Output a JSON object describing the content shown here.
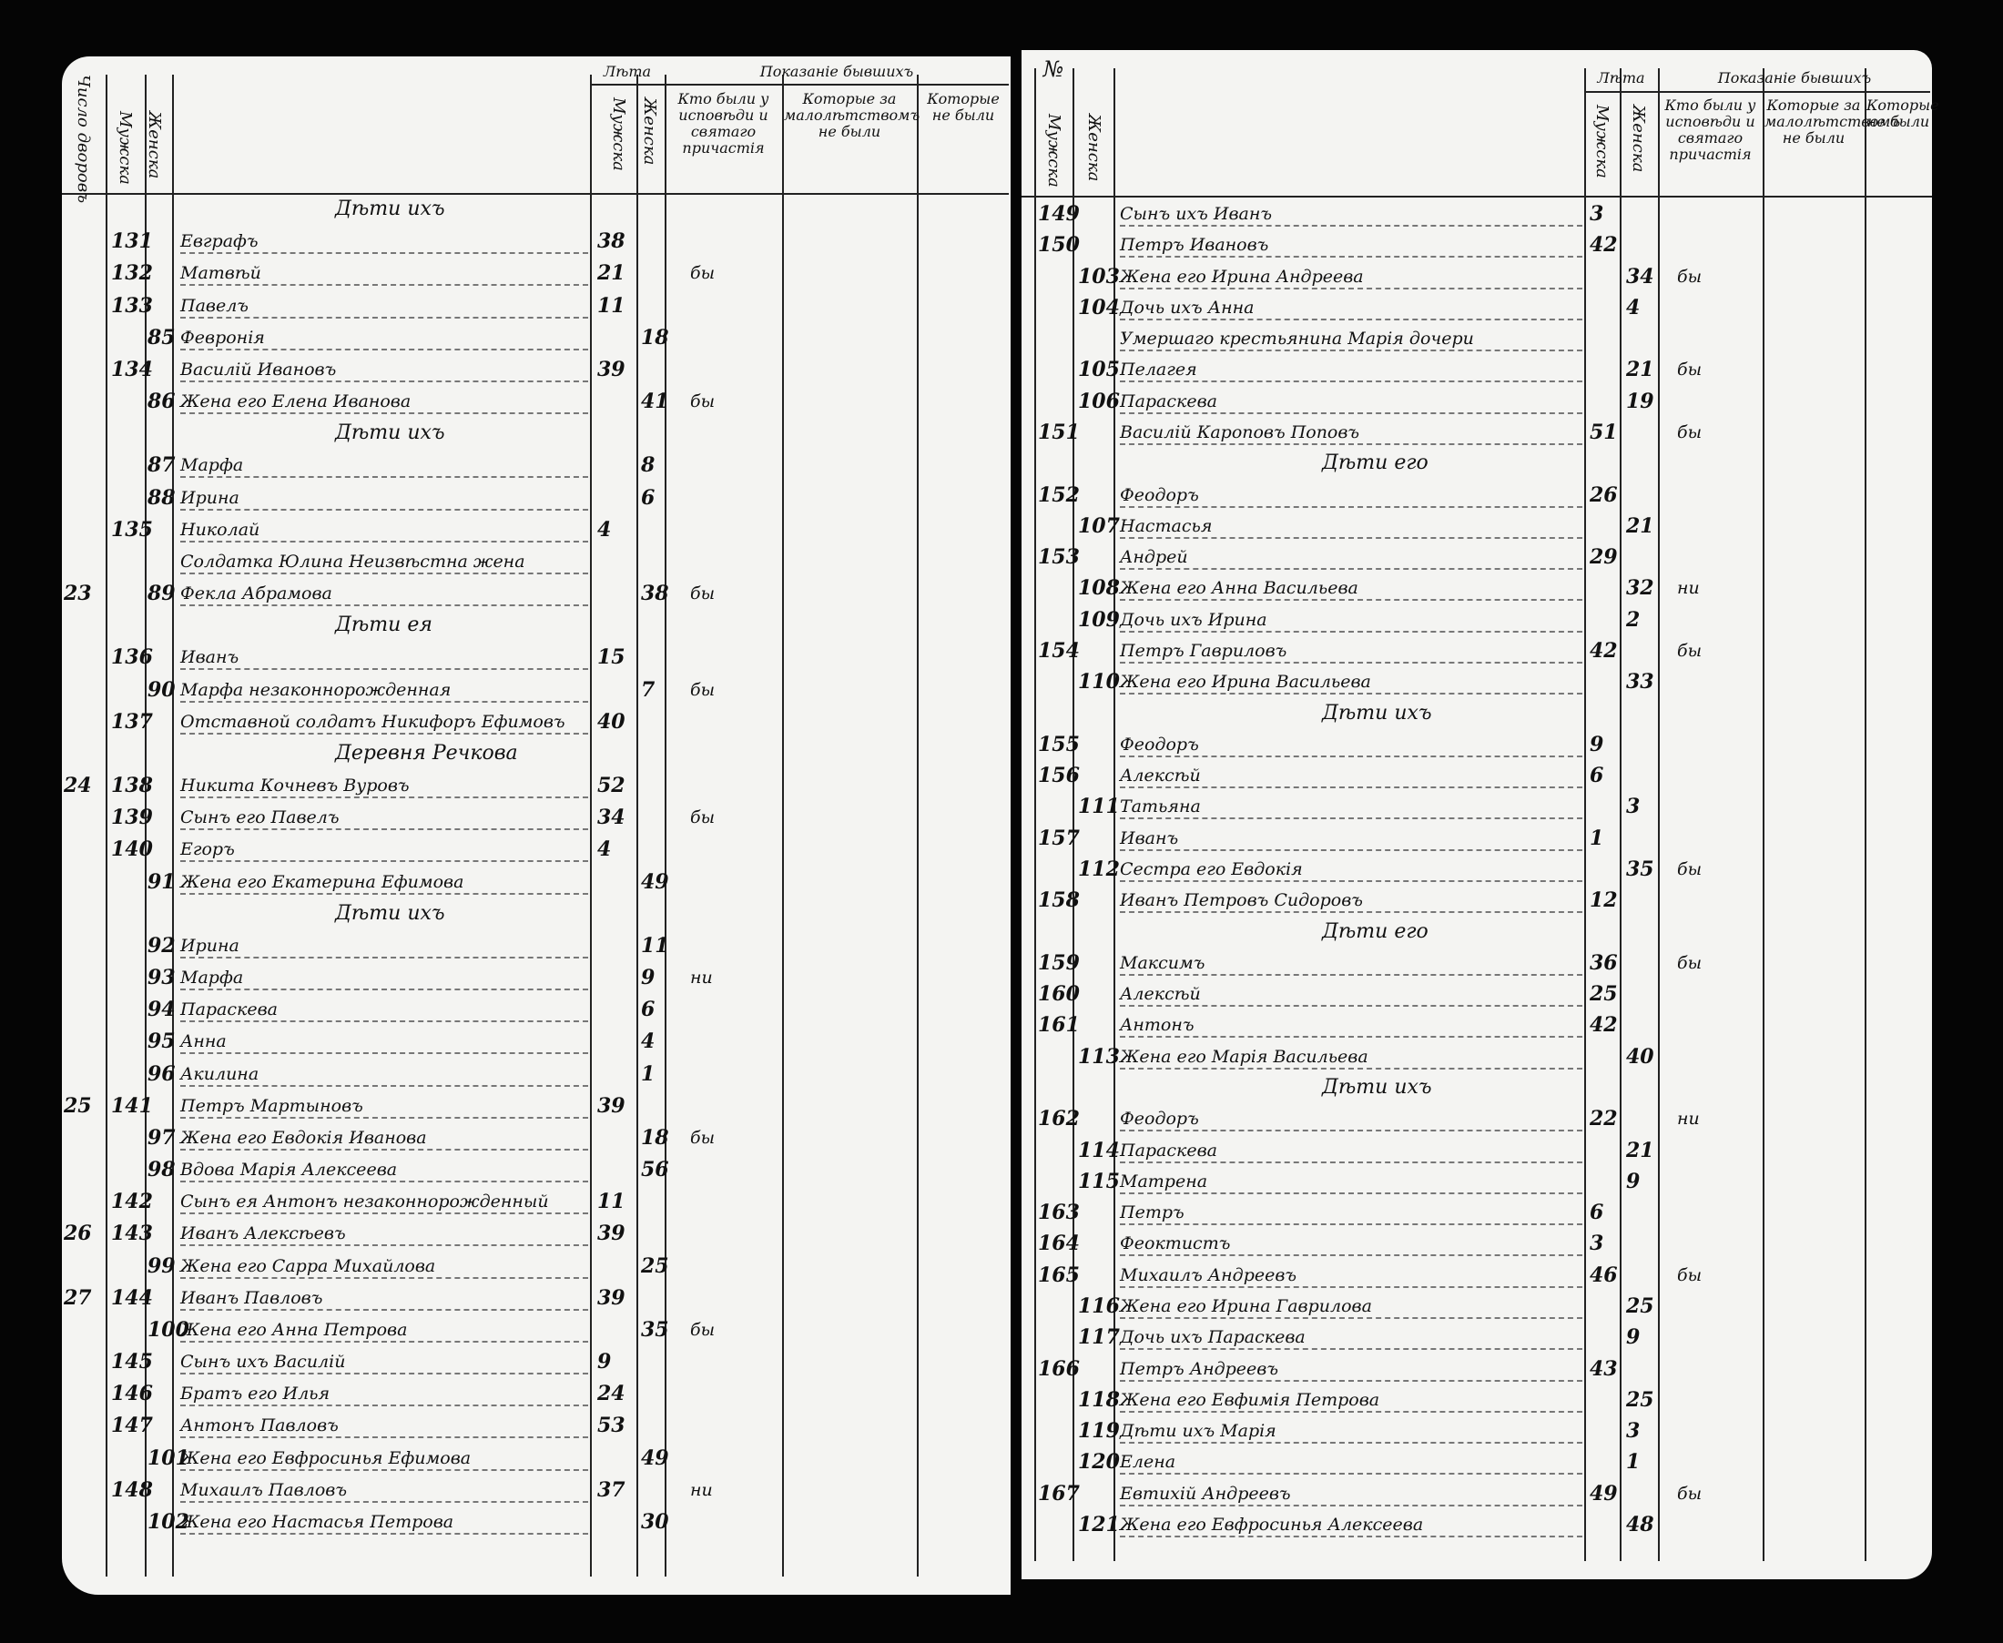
{
  "left_page": {
    "header": {
      "margin_column": "Число дворовъ",
      "male_column": "Мужска",
      "female_column": "Женска",
      "age": "Лѣта",
      "age_male": "Мужска",
      "age_female": "Женска",
      "shown": "Показанiе бывшихъ",
      "were": "Кто были у исповѣди и святаго причастiя",
      "minors": "Которые за малолѣтствомъ не были",
      "absent": "Которые не были"
    },
    "rows": [
      {
        "heading": "Дѣти ихъ"
      },
      {
        "m_no": 131,
        "name": "Евграфъ",
        "m_age": 38
      },
      {
        "m_no": 132,
        "name": "Матвѣй",
        "m_age": 21,
        "mark": "бы"
      },
      {
        "m_no": 133,
        "name": "Павелъ",
        "m_age": 11
      },
      {
        "f_no": 85,
        "name": "Февронiя",
        "f_age": 18
      },
      {
        "m_no": 134,
        "name": "Василiй Ивановъ",
        "m_age": 39
      },
      {
        "f_no": 86,
        "name": "Жена его Елена Иванова",
        "f_age": 41,
        "mark": "бы"
      },
      {
        "heading": "Дѣти ихъ"
      },
      {
        "f_no": 87,
        "name": "Марфа",
        "f_age": 8
      },
      {
        "f_no": 88,
        "name": "Ирина",
        "f_age": 6
      },
      {
        "m_no": 135,
        "name": "Николай",
        "m_age": 4
      },
      {
        "name": "Солдатка Юлина Неизвѣстна жена"
      },
      {
        "margin": 23,
        "f_no": 89,
        "name": "Фекла Абрамова",
        "f_age": 38,
        "mark": "бы"
      },
      {
        "heading": "Дѣти ея"
      },
      {
        "m_no": 136,
        "name": "Иванъ",
        "m_age": 15
      },
      {
        "f_no": 90,
        "name": "Марфа незаконнорожденная",
        "f_age": 7,
        "mark": "бы"
      },
      {
        "m_no": 137,
        "name": "Отставной солдатъ Никифоръ Ефимовъ",
        "m_age": 40
      },
      {
        "heading": "Деревня Речкова"
      },
      {
        "margin": 24,
        "m_no": 138,
        "name": "Никита Кочневъ Вуровъ",
        "m_age": 52
      },
      {
        "m_no": 139,
        "name": "Сынъ его Павелъ",
        "m_age": 34,
        "mark": "бы"
      },
      {
        "m_no": 140,
        "name": "Егоръ",
        "m_age": 4
      },
      {
        "f_no": 91,
        "name": "Жена его Екатерина Ефимова",
        "f_age": 49
      },
      {
        "heading": "Дѣти ихъ"
      },
      {
        "f_no": 92,
        "name": "Ирина",
        "f_age": 11
      },
      {
        "f_no": 93,
        "name": "Марфа",
        "f_age": 9,
        "mark": "ни"
      },
      {
        "f_no": 94,
        "name": "Параскева",
        "f_age": 6
      },
      {
        "f_no": 95,
        "name": "Анна",
        "f_age": 4
      },
      {
        "f_no": 96,
        "name": "Акилина",
        "f_age": 1
      },
      {
        "margin": 25,
        "m_no": 141,
        "name": "Петръ Мартыновъ",
        "m_age": 39
      },
      {
        "f_no": 97,
        "name": "Жена его Евдокiя Иванова",
        "f_age": 18,
        "mark": "бы"
      },
      {
        "f_no": 98,
        "name": "Вдова Марiя Алексеева",
        "f_age": 56
      },
      {
        "m_no": 142,
        "name": "Сынъ ея Антонъ незаконнорожденный",
        "m_age": 11
      },
      {
        "margin": 26,
        "m_no": 143,
        "name": "Иванъ Алексѣевъ",
        "m_age": 39
      },
      {
        "f_no": 99,
        "name": "Жена его Сарра Михайлова",
        "f_age": 25
      },
      {
        "margin": 27,
        "m_no": 144,
        "name": "Иванъ Павловъ",
        "m_age": 39
      },
      {
        "f_no": 100,
        "name": "Жена его Анна Петрова",
        "f_age": 35,
        "mark": "бы"
      },
      {
        "m_no": 145,
        "name": "Сынъ ихъ Василiй",
        "m_age": 9
      },
      {
        "m_no": 146,
        "name": "Братъ его Илья",
        "m_age": 24
      },
      {
        "m_no": 147,
        "name": "Антонъ Павловъ",
        "m_age": 53
      },
      {
        "f_no": 101,
        "name": "Жена его Евфросинья Ефимова",
        "f_age": 49
      },
      {
        "m_no": 148,
        "name": "Михаилъ Павловъ",
        "m_age": 37,
        "mark": "ни"
      },
      {
        "f_no": 102,
        "name": "Жена его Настасья Петрова",
        "f_age": 30
      }
    ]
  },
  "right_page": {
    "header": {
      "number": "№",
      "male_column": "Мужска",
      "female_column": "Женска",
      "age": "Лѣта",
      "age_male": "Мужска",
      "age_female": "Женска",
      "shown": "Показанiе бывшихъ",
      "were": "Кто были у исповѣди и святаго причастiя",
      "minors": "Которые за малолѣтствомъ не были",
      "absent": "Которые не были"
    },
    "rows": [
      {
        "m_no": 149,
        "name": "Сынъ ихъ Иванъ",
        "m_age": 3
      },
      {
        "m_no": 150,
        "name": "Петръ Ивановъ",
        "m_age": 42
      },
      {
        "f_no": 103,
        "name": "Жена его Ирина Андреева",
        "f_age": 34,
        "mark": "бы"
      },
      {
        "f_no": 104,
        "name": "Дочь ихъ Анна",
        "f_age": 4
      },
      {
        "name": "Умершаго крестьянина Марiя дочери"
      },
      {
        "f_no": 105,
        "name": "Пелагея",
        "f_age": 21,
        "mark": "бы"
      },
      {
        "f_no": 106,
        "name": "Параскева",
        "f_age": 19
      },
      {
        "m_no": 151,
        "name": "Василiй Кароповъ Поповъ",
        "m_age": 51,
        "mark": "бы"
      },
      {
        "heading": "Дѣти его"
      },
      {
        "m_no": 152,
        "name": "Феодоръ",
        "m_age": 26
      },
      {
        "f_no": 107,
        "name": "Настасья",
        "f_age": 21
      },
      {
        "m_no": 153,
        "name": "Андрей",
        "m_age": 29
      },
      {
        "f_no": 108,
        "name": "Жена его Анна Васильева",
        "f_age": 32,
        "mark": "ни"
      },
      {
        "f_no": 109,
        "name": "Дочь ихъ Ирина",
        "f_age": 2
      },
      {
        "m_no": 154,
        "name": "Петръ Гавриловъ",
        "m_age": 42,
        "mark": "бы"
      },
      {
        "f_no": 110,
        "name": "Жена его Ирина Васильева",
        "f_age": 33
      },
      {
        "heading": "Дѣти ихъ"
      },
      {
        "m_no": 155,
        "name": "Феодоръ",
        "m_age": 9
      },
      {
        "m_no": 156,
        "name": "Алексѣй",
        "m_age": 6
      },
      {
        "f_no": 111,
        "name": "Татьяна",
        "f_age": 3
      },
      {
        "m_no": 157,
        "name": "Иванъ",
        "m_age": 1
      },
      {
        "f_no": 112,
        "name": "Сестра его Евдокiя",
        "f_age": 35,
        "mark": "бы"
      },
      {
        "m_no": 158,
        "name": "Иванъ Петровъ Сидоровъ",
        "m_age": 12
      },
      {
        "heading": "Дѣти его"
      },
      {
        "m_no": 159,
        "name": "Максимъ",
        "m_age": 36,
        "mark": "бы"
      },
      {
        "m_no": 160,
        "name": "Алексѣй",
        "m_age": 25
      },
      {
        "m_no": 161,
        "name": "Антонъ",
        "m_age": 42
      },
      {
        "f_no": 113,
        "name": "Жена его Марiя Васильева",
        "f_age": 40
      },
      {
        "heading": "Дѣти ихъ"
      },
      {
        "m_no": 162,
        "name": "Феодоръ",
        "m_age": 22,
        "mark": "ни"
      },
      {
        "f_no": 114,
        "name": "Параскева",
        "f_age": 21
      },
      {
        "f_no": 115,
        "name": "Матрена",
        "f_age": 9
      },
      {
        "m_no": 163,
        "name": "Петръ",
        "m_age": 6
      },
      {
        "m_no": 164,
        "name": "Феоктистъ",
        "m_age": 3
      },
      {
        "m_no": 165,
        "name": "Михаилъ Андреевъ",
        "m_age": 46,
        "mark": "бы"
      },
      {
        "f_no": 116,
        "name": "Жена его Ирина Гаврилова",
        "f_age": 25
      },
      {
        "f_no": 117,
        "name": "Дочь ихъ Параскева",
        "f_age": 9
      },
      {
        "m_no": 166,
        "name": "Петръ Андреевъ",
        "m_age": 43
      },
      {
        "f_no": 118,
        "name": "Жена его Евфимiя Петрова",
        "f_age": 25
      },
      {
        "f_no": 119,
        "name": "Дѣти ихъ Марiя",
        "f_age": 3
      },
      {
        "f_no": 120,
        "name": "Елена",
        "f_age": 1
      },
      {
        "m_no": 167,
        "name": "Евтихiй Андреевъ",
        "m_age": 49,
        "mark": "бы"
      },
      {
        "f_no": 121,
        "name": "Жена его Евфросинья Алексеева",
        "f_age": 48
      }
    ]
  }
}
